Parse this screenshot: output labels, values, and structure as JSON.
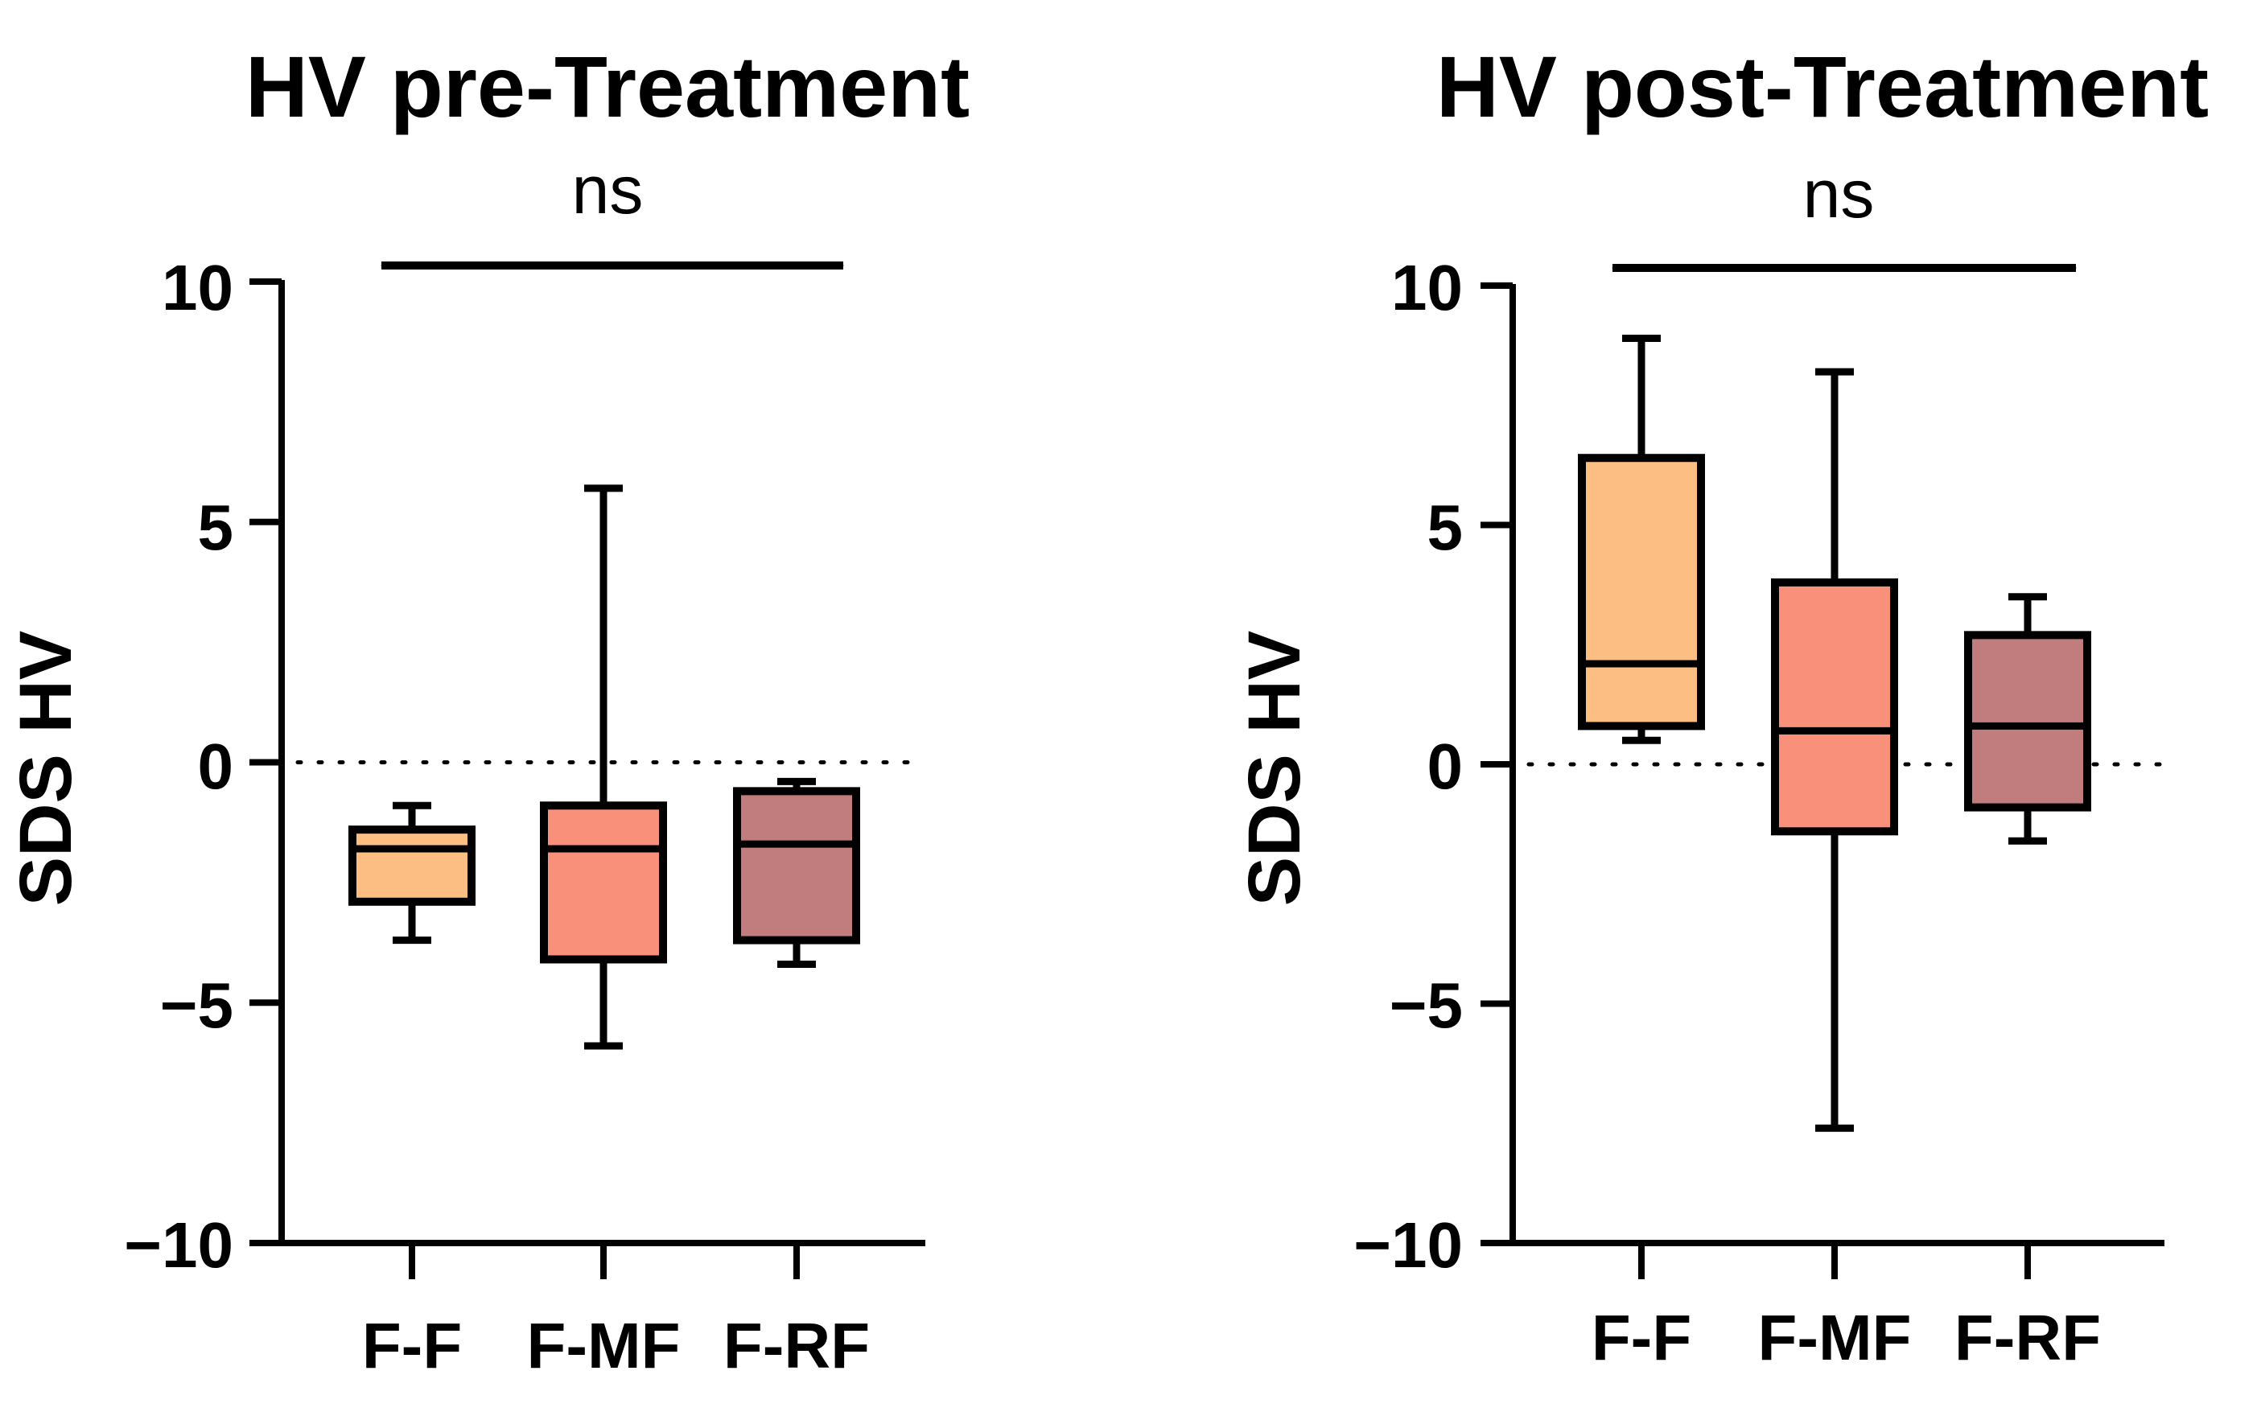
{
  "chart_data": [
    {
      "type": "box",
      "title": "HV pre-Treatment",
      "xlabel": "",
      "ylabel": "SDS HV",
      "ylim": [
        -10,
        10
      ],
      "yticks": [
        10,
        5,
        0,
        -5,
        -10
      ],
      "ytick_labels": [
        "10",
        "5",
        "0",
        "−5",
        "−10"
      ],
      "reference_line": 0,
      "annotation": "ns",
      "categories": [
        "F-F",
        "F-MF",
        "F-RF"
      ],
      "boxes": [
        {
          "category": "F-F",
          "min": -3.7,
          "q1": -2.9,
          "median": -1.8,
          "q3": -1.4,
          "max": -0.9,
          "color": "#FDBE84"
        },
        {
          "category": "F-MF",
          "min": -5.9,
          "q1": -4.1,
          "median": -1.8,
          "q3": -0.9,
          "max": 5.7,
          "color": "#F9917A"
        },
        {
          "category": "F-RF",
          "min": -4.2,
          "q1": -3.7,
          "median": -1.7,
          "q3": -0.6,
          "max": -0.4,
          "color": "#C17D7E"
        }
      ]
    },
    {
      "type": "box",
      "title": "HV post-Treatment",
      "xlabel": "",
      "ylabel": "SDS HV",
      "ylim": [
        -10,
        10
      ],
      "yticks": [
        10,
        5,
        0,
        -5,
        -10
      ],
      "ytick_labels": [
        "10",
        "5",
        "0",
        "−5",
        "−10"
      ],
      "reference_line": 0,
      "annotation": "ns",
      "categories": [
        "F-F",
        "F-MF",
        "F-RF"
      ],
      "boxes": [
        {
          "category": "F-F",
          "min": 0.5,
          "q1": 0.8,
          "median": 2.1,
          "q3": 6.4,
          "max": 8.9,
          "color": "#FDBE84"
        },
        {
          "category": "F-MF",
          "min": -7.6,
          "q1": -1.4,
          "median": 0.7,
          "q3": 3.8,
          "max": 8.2,
          "color": "#F9917A"
        },
        {
          "category": "F-RF",
          "min": -1.6,
          "q1": -0.9,
          "median": 0.8,
          "q3": 2.7,
          "max": 3.5,
          "color": "#C17D7E"
        }
      ]
    }
  ]
}
